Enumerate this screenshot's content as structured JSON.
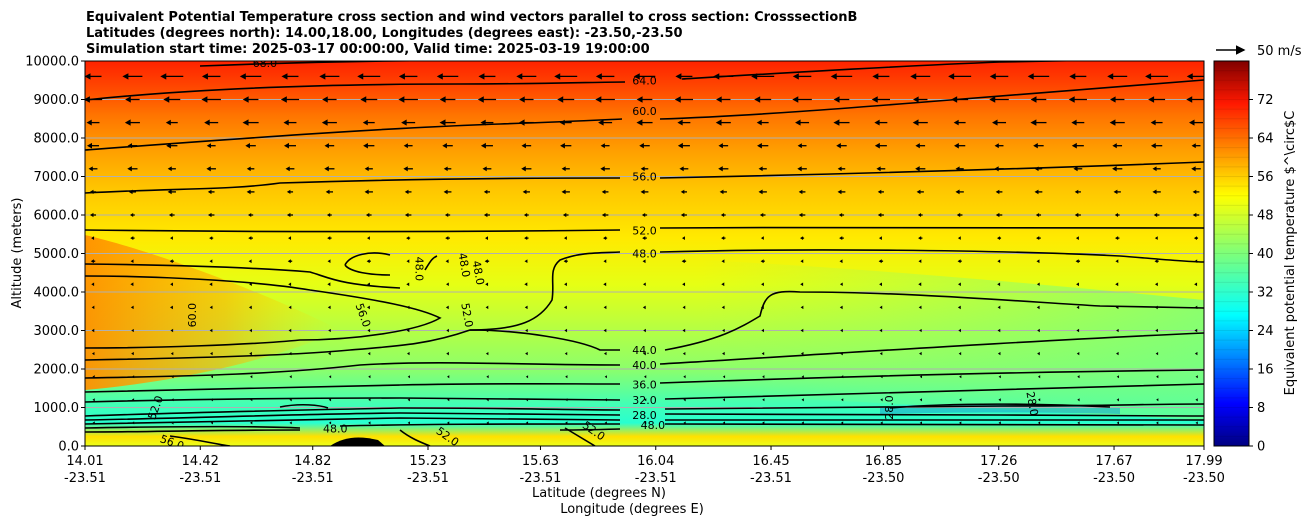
{
  "chart_data": {
    "type": "contour",
    "title_lines": [
      "Equivalent Potential Temperature cross section and wind vectors parallel to cross section: CrosssectionB",
      "Latitudes (degrees north): 14.00,18.00, Longitudes (degrees east): -23.50,-23.50",
      "Simulation start time: 2025-03-17 00:00:00, Valid time: 2025-03-19 19:00:00"
    ],
    "ylabel": "Altitude (meters)",
    "xlabel_lat": "Latitude (degrees N)",
    "xlabel_lon": "Longitude (degrees E)",
    "ylim": [
      0,
      10000
    ],
    "yticks": [
      "0.0",
      "1000.0",
      "2000.0",
      "3000.0",
      "4000.0",
      "5000.0",
      "6000.0",
      "7000.0",
      "8000.0",
      "9000.0",
      "10000.0"
    ],
    "xticks_lat": [
      "14.01",
      "14.42",
      "14.82",
      "15.23",
      "15.63",
      "16.04",
      "16.45",
      "16.85",
      "17.26",
      "17.67",
      "17.99"
    ],
    "xticks_lon": [
      "-23.51",
      "-23.51",
      "-23.51",
      "-23.51",
      "-23.51",
      "-23.51",
      "-23.51",
      "-23.50",
      "-23.50",
      "-23.50",
      "-23.50"
    ],
    "grid": "horizontal",
    "colorbar": {
      "label": "Equivalent potential temperature $^\\circ$C",
      "ticks": [
        "0",
        "8",
        "16",
        "24",
        "32",
        "40",
        "48",
        "56",
        "64",
        "72"
      ],
      "range": [
        0,
        80
      ],
      "cmap": "jet"
    },
    "quiver_key": {
      "label": "50 m/s",
      "speed": 50
    },
    "contour_levels": [
      {
        "level": 64,
        "label": "64.0",
        "x": 16.0,
        "alt": 9500
      },
      {
        "level": 60,
        "label": "60.0",
        "x": 16.0,
        "alt": 8700
      },
      {
        "level": 56,
        "label": "56.0",
        "x": 16.0,
        "alt": 7000
      },
      {
        "level": 52,
        "label": "52.0",
        "x": 16.0,
        "alt": 5600
      },
      {
        "level": 48,
        "label": "48.0",
        "x": 16.0,
        "alt": 5000
      },
      {
        "level": 44,
        "label": "44.0",
        "x": 16.0,
        "alt": 2500
      },
      {
        "level": 40,
        "label": "40.0",
        "x": 16.0,
        "alt": 2100
      },
      {
        "level": 36,
        "label": "36.0",
        "x": 16.0,
        "alt": 1600
      },
      {
        "level": 32,
        "label": "32.0",
        "x": 16.0,
        "alt": 1200
      },
      {
        "level": 28,
        "label": "28.0",
        "x": 16.0,
        "alt": 800
      }
    ],
    "extra_labels": [
      {
        "label": "68.0",
        "x": 14.65,
        "alt": 9950
      },
      {
        "label": "60.0",
        "x": 14.39,
        "alt": 3400
      },
      {
        "label": "56.0",
        "x": 15.0,
        "alt": 3400
      },
      {
        "label": "52.0",
        "x": 15.37,
        "alt": 3400
      },
      {
        "label": "48.0",
        "x": 15.2,
        "alt": 4600
      },
      {
        "label": "48.0",
        "x": 15.36,
        "alt": 4700
      },
      {
        "label": "48.0",
        "x": 15.41,
        "alt": 4500
      },
      {
        "label": "52.0",
        "x": 14.26,
        "alt": 1000
      },
      {
        "label": "56.0",
        "x": 14.32,
        "alt": 100
      },
      {
        "label": "48.0",
        "x": 14.9,
        "alt": 450
      },
      {
        "label": "52.0",
        "x": 15.3,
        "alt": 250
      },
      {
        "label": "52.0",
        "x": 15.82,
        "alt": 400
      },
      {
        "label": "48.0",
        "x": 16.03,
        "alt": 550
      },
      {
        "label": "28.0",
        "x": 16.87,
        "alt": 1000
      },
      {
        "label": "28.0",
        "x": 17.38,
        "alt": 1100
      }
    ]
  }
}
